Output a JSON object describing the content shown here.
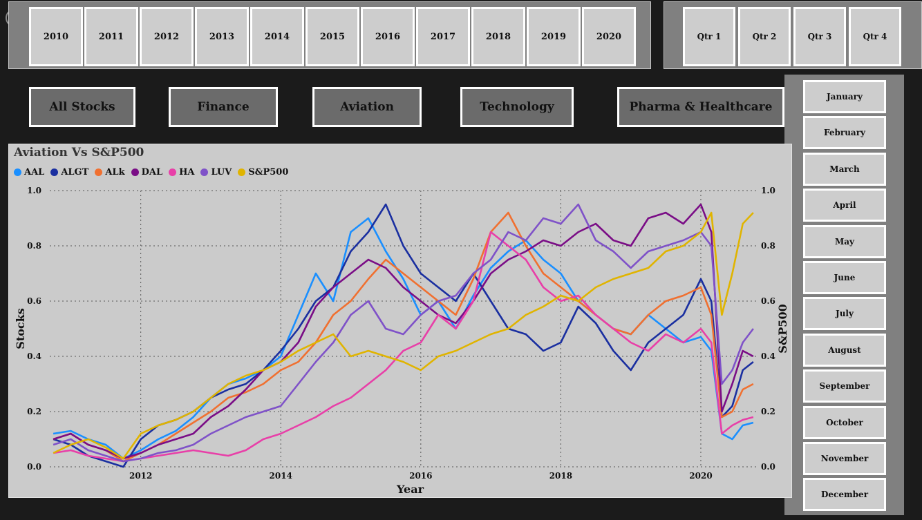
{
  "years": [
    "2010",
    "2011",
    "2012",
    "2013",
    "2014",
    "2015",
    "2016",
    "2017",
    "2018",
    "2019",
    "2020"
  ],
  "quarters": [
    "Qtr 1",
    "Qtr 2",
    "Qtr 3",
    "Qtr 4"
  ],
  "categories": [
    "All Stocks",
    "Finance",
    "Aviation",
    "Technology",
    "Pharma & Healthcare"
  ],
  "months": [
    "January",
    "February",
    "March",
    "April",
    "May",
    "June",
    "July",
    "August",
    "September",
    "October",
    "November",
    "December"
  ],
  "chart_data": {
    "type": "line",
    "title": "Aviation Vs S&P500",
    "xlabel": "Year",
    "ylabel": "Stocks",
    "y2label": "S&P500",
    "xlim": [
      2010.7,
      2020.8
    ],
    "ylim": [
      0,
      1
    ],
    "y2lim": [
      0,
      1
    ],
    "x_ticks": [
      "2012",
      "2014",
      "2016",
      "2018",
      "2020"
    ],
    "y_ticks": [
      "0.0",
      "0.2",
      "0.4",
      "0.6",
      "0.8",
      "1.0"
    ],
    "y2_ticks": [
      "0.0",
      "0.2",
      "0.4",
      "0.6",
      "0.8",
      "1.0"
    ],
    "grid": true,
    "legend": "top-left",
    "x": [
      2010.75,
      2011.0,
      2011.25,
      2011.5,
      2011.75,
      2012.0,
      2012.25,
      2012.5,
      2012.75,
      2013.0,
      2013.25,
      2013.5,
      2013.75,
      2014.0,
      2014.25,
      2014.5,
      2014.75,
      2015.0,
      2015.25,
      2015.5,
      2015.75,
      2016.0,
      2016.25,
      2016.5,
      2016.75,
      2017.0,
      2017.25,
      2017.5,
      2017.75,
      2018.0,
      2018.25,
      2018.5,
      2018.75,
      2019.0,
      2019.25,
      2019.5,
      2019.75,
      2020.0,
      2020.15,
      2020.3,
      2020.45,
      2020.6,
      2020.75
    ],
    "series": [
      {
        "name": "AAL",
        "color": "#1a8fff",
        "values": [
          0.12,
          0.13,
          0.1,
          0.08,
          0.03,
          0.06,
          0.1,
          0.13,
          0.18,
          0.25,
          0.3,
          0.32,
          0.35,
          0.4,
          0.55,
          0.7,
          0.6,
          0.85,
          0.9,
          0.78,
          0.68,
          0.55,
          0.6,
          0.5,
          0.62,
          0.72,
          0.78,
          0.82,
          0.75,
          0.7,
          0.6,
          0.55,
          0.5,
          0.48,
          0.55,
          0.5,
          0.45,
          0.47,
          0.42,
          0.12,
          0.1,
          0.15,
          0.16
        ]
      },
      {
        "name": "ALGT",
        "color": "#1a2fa0",
        "values": [
          0.1,
          0.08,
          0.04,
          0.02,
          0.0,
          0.1,
          0.15,
          0.17,
          0.2,
          0.25,
          0.28,
          0.3,
          0.35,
          0.42,
          0.5,
          0.6,
          0.65,
          0.78,
          0.85,
          0.95,
          0.8,
          0.7,
          0.65,
          0.6,
          0.7,
          0.6,
          0.5,
          0.48,
          0.42,
          0.45,
          0.58,
          0.52,
          0.42,
          0.35,
          0.45,
          0.5,
          0.55,
          0.68,
          0.6,
          0.18,
          0.22,
          0.35,
          0.38
        ]
      },
      {
        "name": "ALk",
        "color": "#f07030",
        "values": [
          0.1,
          0.12,
          0.08,
          0.06,
          0.02,
          0.05,
          0.08,
          0.12,
          0.16,
          0.2,
          0.25,
          0.27,
          0.3,
          0.35,
          0.38,
          0.45,
          0.55,
          0.6,
          0.68,
          0.75,
          0.7,
          0.65,
          0.6,
          0.55,
          0.68,
          0.85,
          0.92,
          0.8,
          0.7,
          0.65,
          0.6,
          0.55,
          0.5,
          0.48,
          0.55,
          0.6,
          0.62,
          0.65,
          0.55,
          0.18,
          0.2,
          0.28,
          0.3
        ]
      },
      {
        "name": "DAL",
        "color": "#7a0d86",
        "values": [
          0.1,
          0.12,
          0.08,
          0.06,
          0.03,
          0.05,
          0.08,
          0.1,
          0.12,
          0.18,
          0.22,
          0.28,
          0.35,
          0.38,
          0.45,
          0.58,
          0.65,
          0.7,
          0.75,
          0.72,
          0.65,
          0.6,
          0.55,
          0.52,
          0.6,
          0.7,
          0.75,
          0.78,
          0.82,
          0.8,
          0.85,
          0.88,
          0.82,
          0.8,
          0.9,
          0.92,
          0.88,
          0.95,
          0.85,
          0.2,
          0.3,
          0.42,
          0.4
        ]
      },
      {
        "name": "HA",
        "color": "#e83fa8",
        "values": [
          0.05,
          0.06,
          0.04,
          0.03,
          0.02,
          0.03,
          0.04,
          0.05,
          0.06,
          0.05,
          0.04,
          0.06,
          0.1,
          0.12,
          0.15,
          0.18,
          0.22,
          0.25,
          0.3,
          0.35,
          0.42,
          0.45,
          0.55,
          0.5,
          0.6,
          0.85,
          0.8,
          0.75,
          0.65,
          0.6,
          0.62,
          0.55,
          0.5,
          0.45,
          0.42,
          0.48,
          0.45,
          0.5,
          0.45,
          0.12,
          0.15,
          0.17,
          0.18
        ]
      },
      {
        "name": "LUV",
        "color": "#7f52c8",
        "values": [
          0.08,
          0.1,
          0.06,
          0.04,
          0.02,
          0.03,
          0.05,
          0.06,
          0.08,
          0.12,
          0.15,
          0.18,
          0.2,
          0.22,
          0.3,
          0.38,
          0.45,
          0.55,
          0.6,
          0.5,
          0.48,
          0.55,
          0.6,
          0.62,
          0.7,
          0.75,
          0.85,
          0.82,
          0.9,
          0.88,
          0.95,
          0.82,
          0.78,
          0.72,
          0.78,
          0.8,
          0.82,
          0.85,
          0.8,
          0.3,
          0.35,
          0.45,
          0.5
        ]
      },
      {
        "name": "S&P500",
        "color": "#e0b400",
        "values": [
          0.05,
          0.08,
          0.1,
          0.07,
          0.03,
          0.12,
          0.15,
          0.17,
          0.2,
          0.25,
          0.3,
          0.33,
          0.35,
          0.38,
          0.42,
          0.45,
          0.48,
          0.4,
          0.42,
          0.4,
          0.38,
          0.35,
          0.4,
          0.42,
          0.45,
          0.48,
          0.5,
          0.55,
          0.58,
          0.62,
          0.6,
          0.65,
          0.68,
          0.7,
          0.72,
          0.78,
          0.8,
          0.85,
          0.92,
          0.55,
          0.7,
          0.88,
          0.92
        ]
      }
    ]
  }
}
